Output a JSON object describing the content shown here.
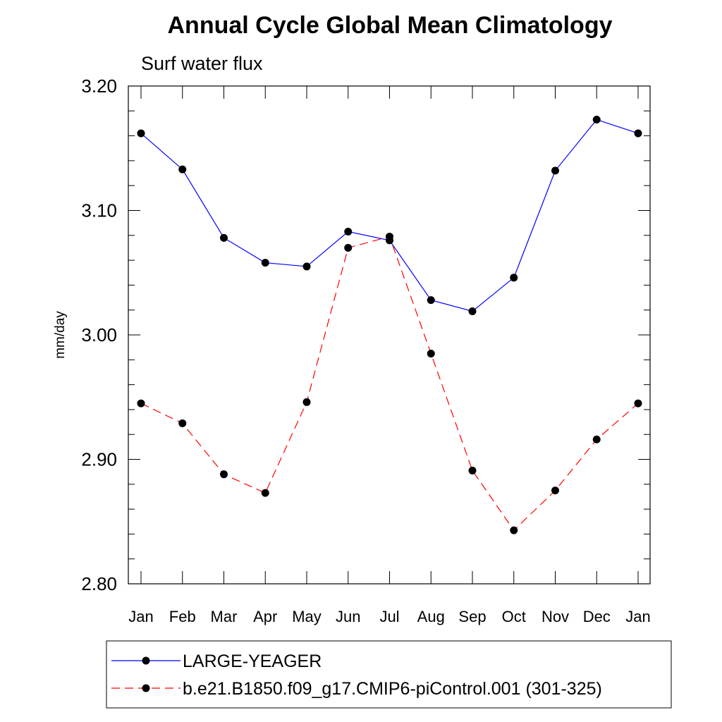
{
  "chart_data": {
    "type": "line",
    "title": "Annual Cycle Global Mean Climatology",
    "subtitle": "Surf water flux",
    "ylabel": "mm/day",
    "xlabel": "",
    "categories": [
      "Jan",
      "Feb",
      "Mar",
      "Apr",
      "May",
      "Jun",
      "Jul",
      "Aug",
      "Sep",
      "Oct",
      "Nov",
      "Dec",
      "Jan"
    ],
    "ylim": [
      2.8,
      3.2
    ],
    "yticks": [
      2.8,
      2.9,
      3.0,
      3.1,
      3.2
    ],
    "ytick_labels": [
      "2.80",
      "2.90",
      "3.00",
      "3.10",
      "3.20"
    ],
    "y_minor_step": 0.02,
    "grid": false,
    "legend_position": "bottom",
    "series": [
      {
        "name": "LARGE-YEAGER",
        "color": "#0000ff",
        "dash": "solid",
        "marker": "filled-circle",
        "values": [
          3.162,
          3.133,
          3.078,
          3.058,
          3.055,
          3.083,
          3.076,
          3.028,
          3.019,
          3.046,
          3.132,
          3.173,
          3.162
        ]
      },
      {
        "name": "b.e21.B1850.f09_g17.CMIP6-piControl.001 (301-325)",
        "color": "#ff0000",
        "dash": "dashed",
        "marker": "filled-circle",
        "values": [
          2.945,
          2.929,
          2.888,
          2.873,
          2.946,
          3.07,
          3.079,
          2.985,
          2.891,
          2.843,
          2.875,
          2.916,
          2.945
        ]
      }
    ]
  }
}
